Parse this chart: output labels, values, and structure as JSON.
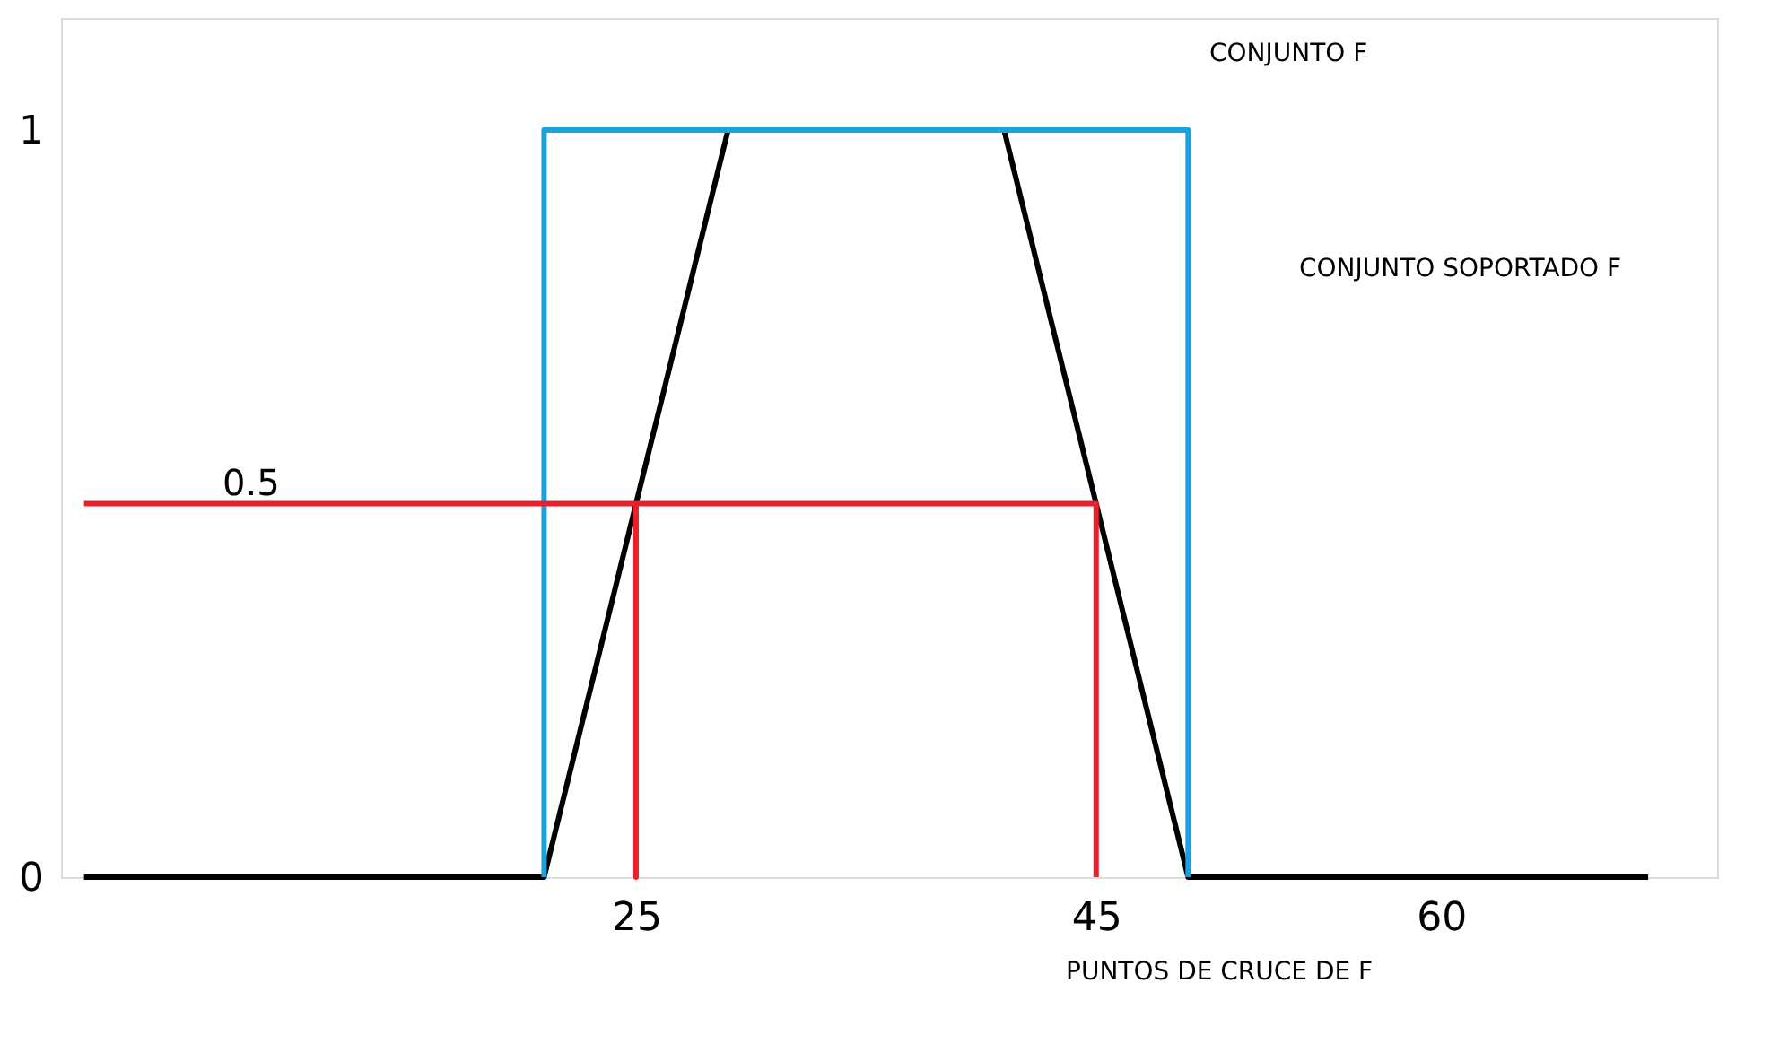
{
  "chart_data": {
    "type": "line",
    "xlim": [
      0,
      72
    ],
    "ylim": [
      0,
      1.15
    ],
    "xticks": [
      25,
      45,
      60
    ],
    "yticks": [
      0,
      1
    ],
    "grid": false,
    "marker": "none",
    "line_style": "solid",
    "series": [
      {
        "color": "#000000",
        "x": [
          1,
          21,
          29,
          41,
          49,
          69
        ],
        "values": [
          0,
          0,
          1,
          1,
          0,
          0
        ]
      },
      {
        "color": "#1ba1e2",
        "x": [
          21,
          21,
          49,
          49
        ],
        "values": [
          0,
          1,
          1,
          0
        ]
      },
      {
        "color": "#e8202a",
        "x": [
          1,
          25,
          25,
          25,
          45,
          45
        ],
        "values": [
          0.5,
          0.5,
          0,
          0.5,
          0.5,
          0
        ]
      }
    ],
    "annotations": [
      "0.5",
      "CONJUNTO F",
      "CONJUNTO SOPORTADO F",
      "PUNTOS DE CRUCE DE F"
    ]
  }
}
